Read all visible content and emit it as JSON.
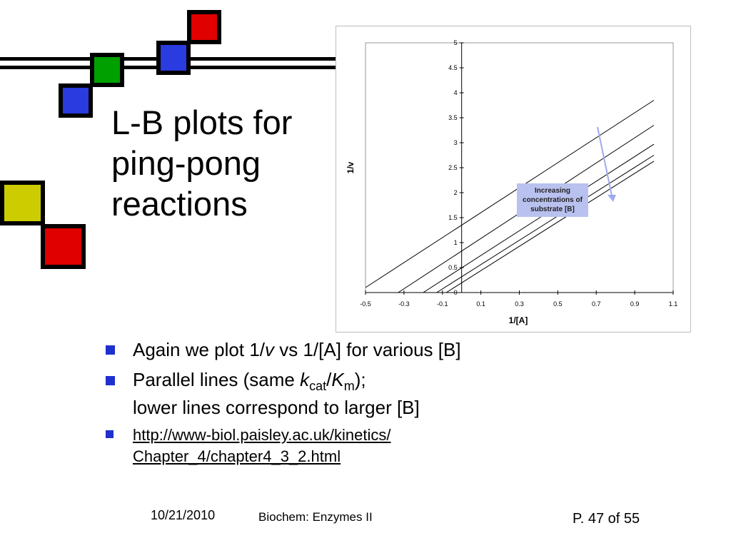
{
  "slide": {
    "title": "L-B plots for ping-pong reactions",
    "bullets": [
      {
        "pre": "Again we plot 1/",
        "italic": "v",
        "post": " vs 1/[A] for various [B]"
      },
      {
        "pre": "Parallel lines (same ",
        "k": "k",
        "k_sub": "cat",
        "slash": "/",
        "K": "K",
        "K_sub": "m",
        "close": ");",
        "line2": "lower lines correspond to larger [B]"
      },
      {
        "line1": "http://www-biol.paisley.ac.uk/kinetics/",
        "line2": "Chapter_4/chapter4_3_2.html"
      }
    ],
    "footer": {
      "date": "10/21/2010",
      "course": "Biochem: Enzymes II",
      "page": "P. 47 of 55"
    },
    "colors": {
      "bullet": "#1f2fd0",
      "red": "#e00000",
      "green": "#00a000",
      "blue": "#2a3be0",
      "yellow": "#cccc00"
    }
  },
  "chart_data": {
    "type": "line",
    "xlabel": "1/[A]",
    "ylabel": "1/v",
    "xlim": [
      -0.5,
      1.1
    ],
    "ylim": [
      0,
      5
    ],
    "x_ticks": [
      "-0.5",
      "-0.3",
      "-0.1",
      "0.1",
      "0.3",
      "0.5",
      "0.7",
      "0.9",
      "1.1"
    ],
    "y_ticks": [
      "0",
      "0.5",
      "1",
      "1.5",
      "2",
      "2.5",
      "3",
      "3.5",
      "4",
      "4.5",
      "5"
    ],
    "annotation": "Increasing concentrations of substrate [B]",
    "series": [
      {
        "x": [
          -0.5,
          1.0
        ],
        "y": [
          0.1,
          3.85
        ]
      },
      {
        "x": [
          -0.33,
          1.0
        ],
        "y": [
          0.0,
          3.35
        ]
      },
      {
        "x": [
          -0.2,
          1.0
        ],
        "y": [
          0.0,
          2.97
        ]
      },
      {
        "x": [
          -0.13,
          1.0
        ],
        "y": [
          0.0,
          2.75
        ]
      },
      {
        "x": [
          -0.08,
          1.0
        ],
        "y": [
          0.0,
          2.63
        ]
      }
    ],
    "grid": false
  }
}
